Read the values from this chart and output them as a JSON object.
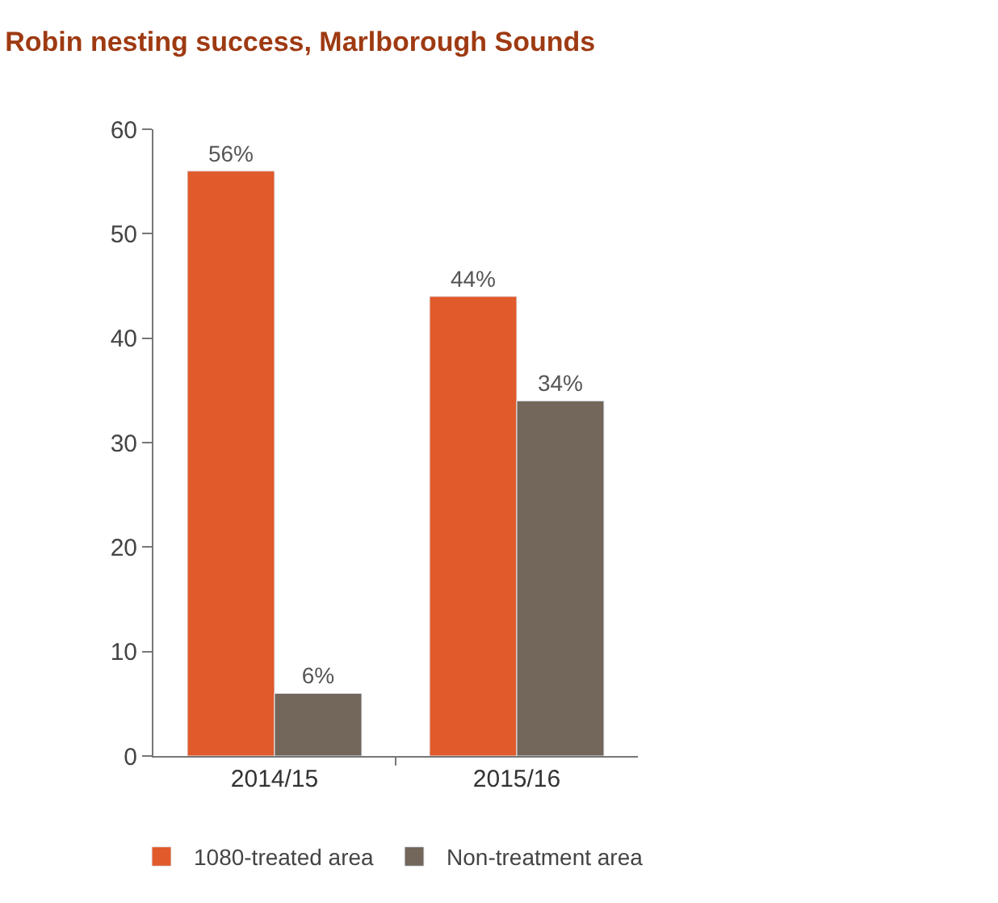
{
  "chart_data": {
    "type": "bar",
    "title": "Robin nesting success, Marlborough Sounds",
    "categories": [
      "2014/15",
      "2015/16"
    ],
    "series": [
      {
        "name": "1080-treated area",
        "color": "#e05a2b",
        "values": [
          56,
          44
        ],
        "value_labels": [
          "56%",
          "44%"
        ]
      },
      {
        "name": "Non-treatment area",
        "color": "#73665a",
        "values": [
          6,
          34
        ],
        "value_labels": [
          "6%",
          "34%"
        ]
      }
    ],
    "ylim": [
      0,
      60
    ],
    "yticks": [
      0,
      10,
      20,
      30,
      40,
      50,
      60
    ],
    "legend": "bottom"
  }
}
